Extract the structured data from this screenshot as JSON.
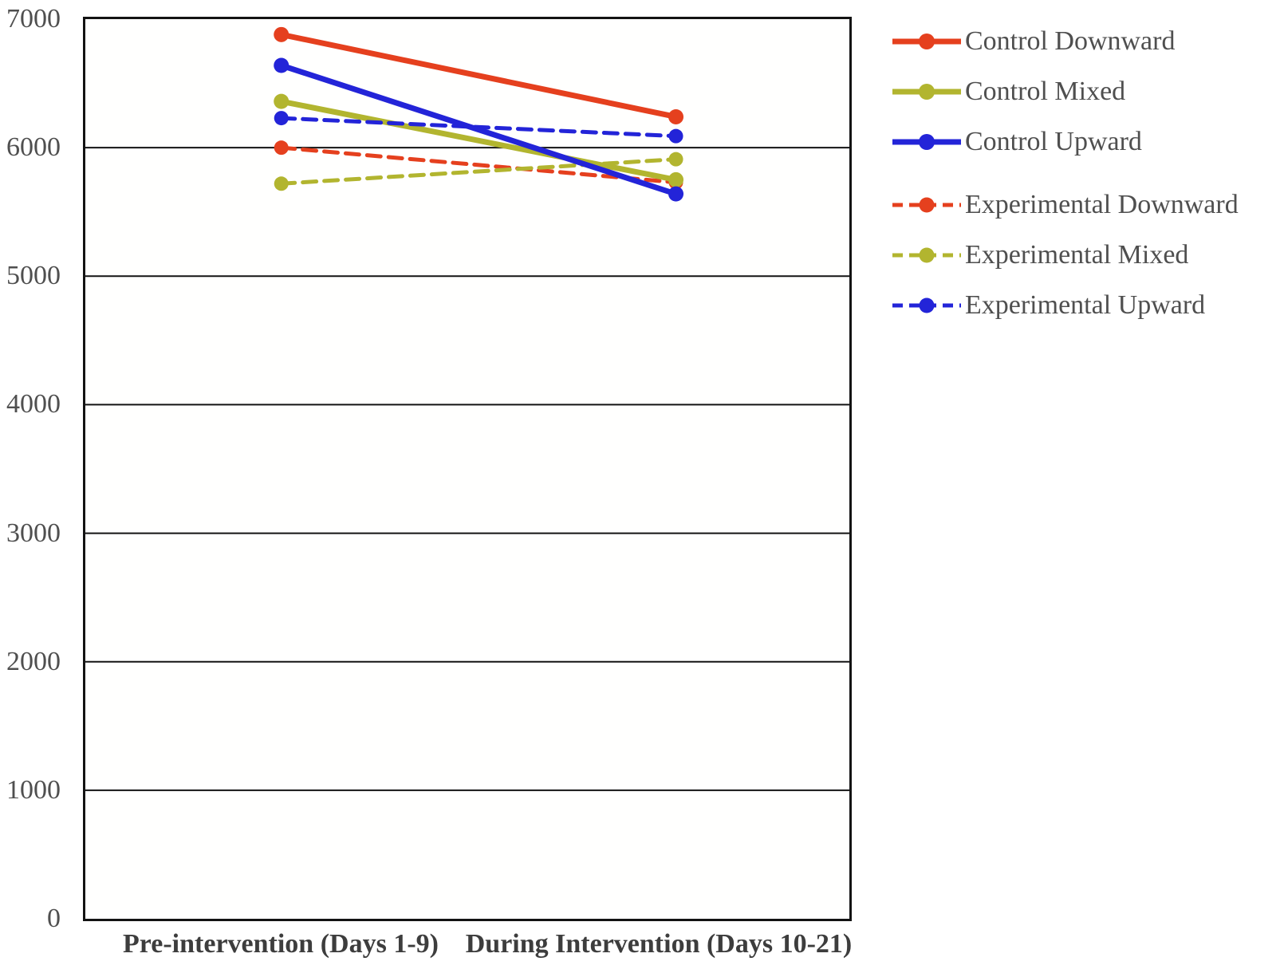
{
  "chart_data": {
    "type": "line",
    "title": "",
    "xlabel": "",
    "ylabel": "",
    "categories": [
      "Pre-intervention (Days 1-9)",
      "During Intervention (Days 10-21)"
    ],
    "series": [
      {
        "name": "Control Downward",
        "group": "Control",
        "style": "solid",
        "color": "#e5401e",
        "values": [
          6880,
          6240
        ]
      },
      {
        "name": "Control Mixed",
        "group": "Control",
        "style": "solid",
        "color": "#b2b52f",
        "values": [
          6360,
          5750
        ]
      },
      {
        "name": "Control Upward",
        "group": "Control",
        "style": "solid",
        "color": "#2324d8",
        "values": [
          6640,
          5640
        ]
      },
      {
        "name": "Experimental Downward",
        "group": "Experimental",
        "style": "dashed",
        "color": "#e5401e",
        "values": [
          6000,
          5730
        ]
      },
      {
        "name": "Experimental Mixed",
        "group": "Experimental",
        "style": "dashed",
        "color": "#b2b52f",
        "values": [
          5720,
          5910
        ]
      },
      {
        "name": "Experimental Upward",
        "group": "Experimental",
        "style": "dashed",
        "color": "#2324d8",
        "values": [
          6230,
          6090
        ]
      }
    ],
    "ylim": [
      0,
      7000
    ],
    "ytick_step": 1000,
    "y_tick_labels": [
      "0",
      "1000",
      "2000",
      "3000",
      "4000",
      "5000",
      "6000",
      "7000"
    ],
    "grid": "horizontal",
    "gridline_color": "#131313",
    "legend_position": "right",
    "tick_label_color": "#4f4f4f",
    "x_label_color": "#3d3d3d",
    "legend_text_color": "#4f4f4f"
  }
}
